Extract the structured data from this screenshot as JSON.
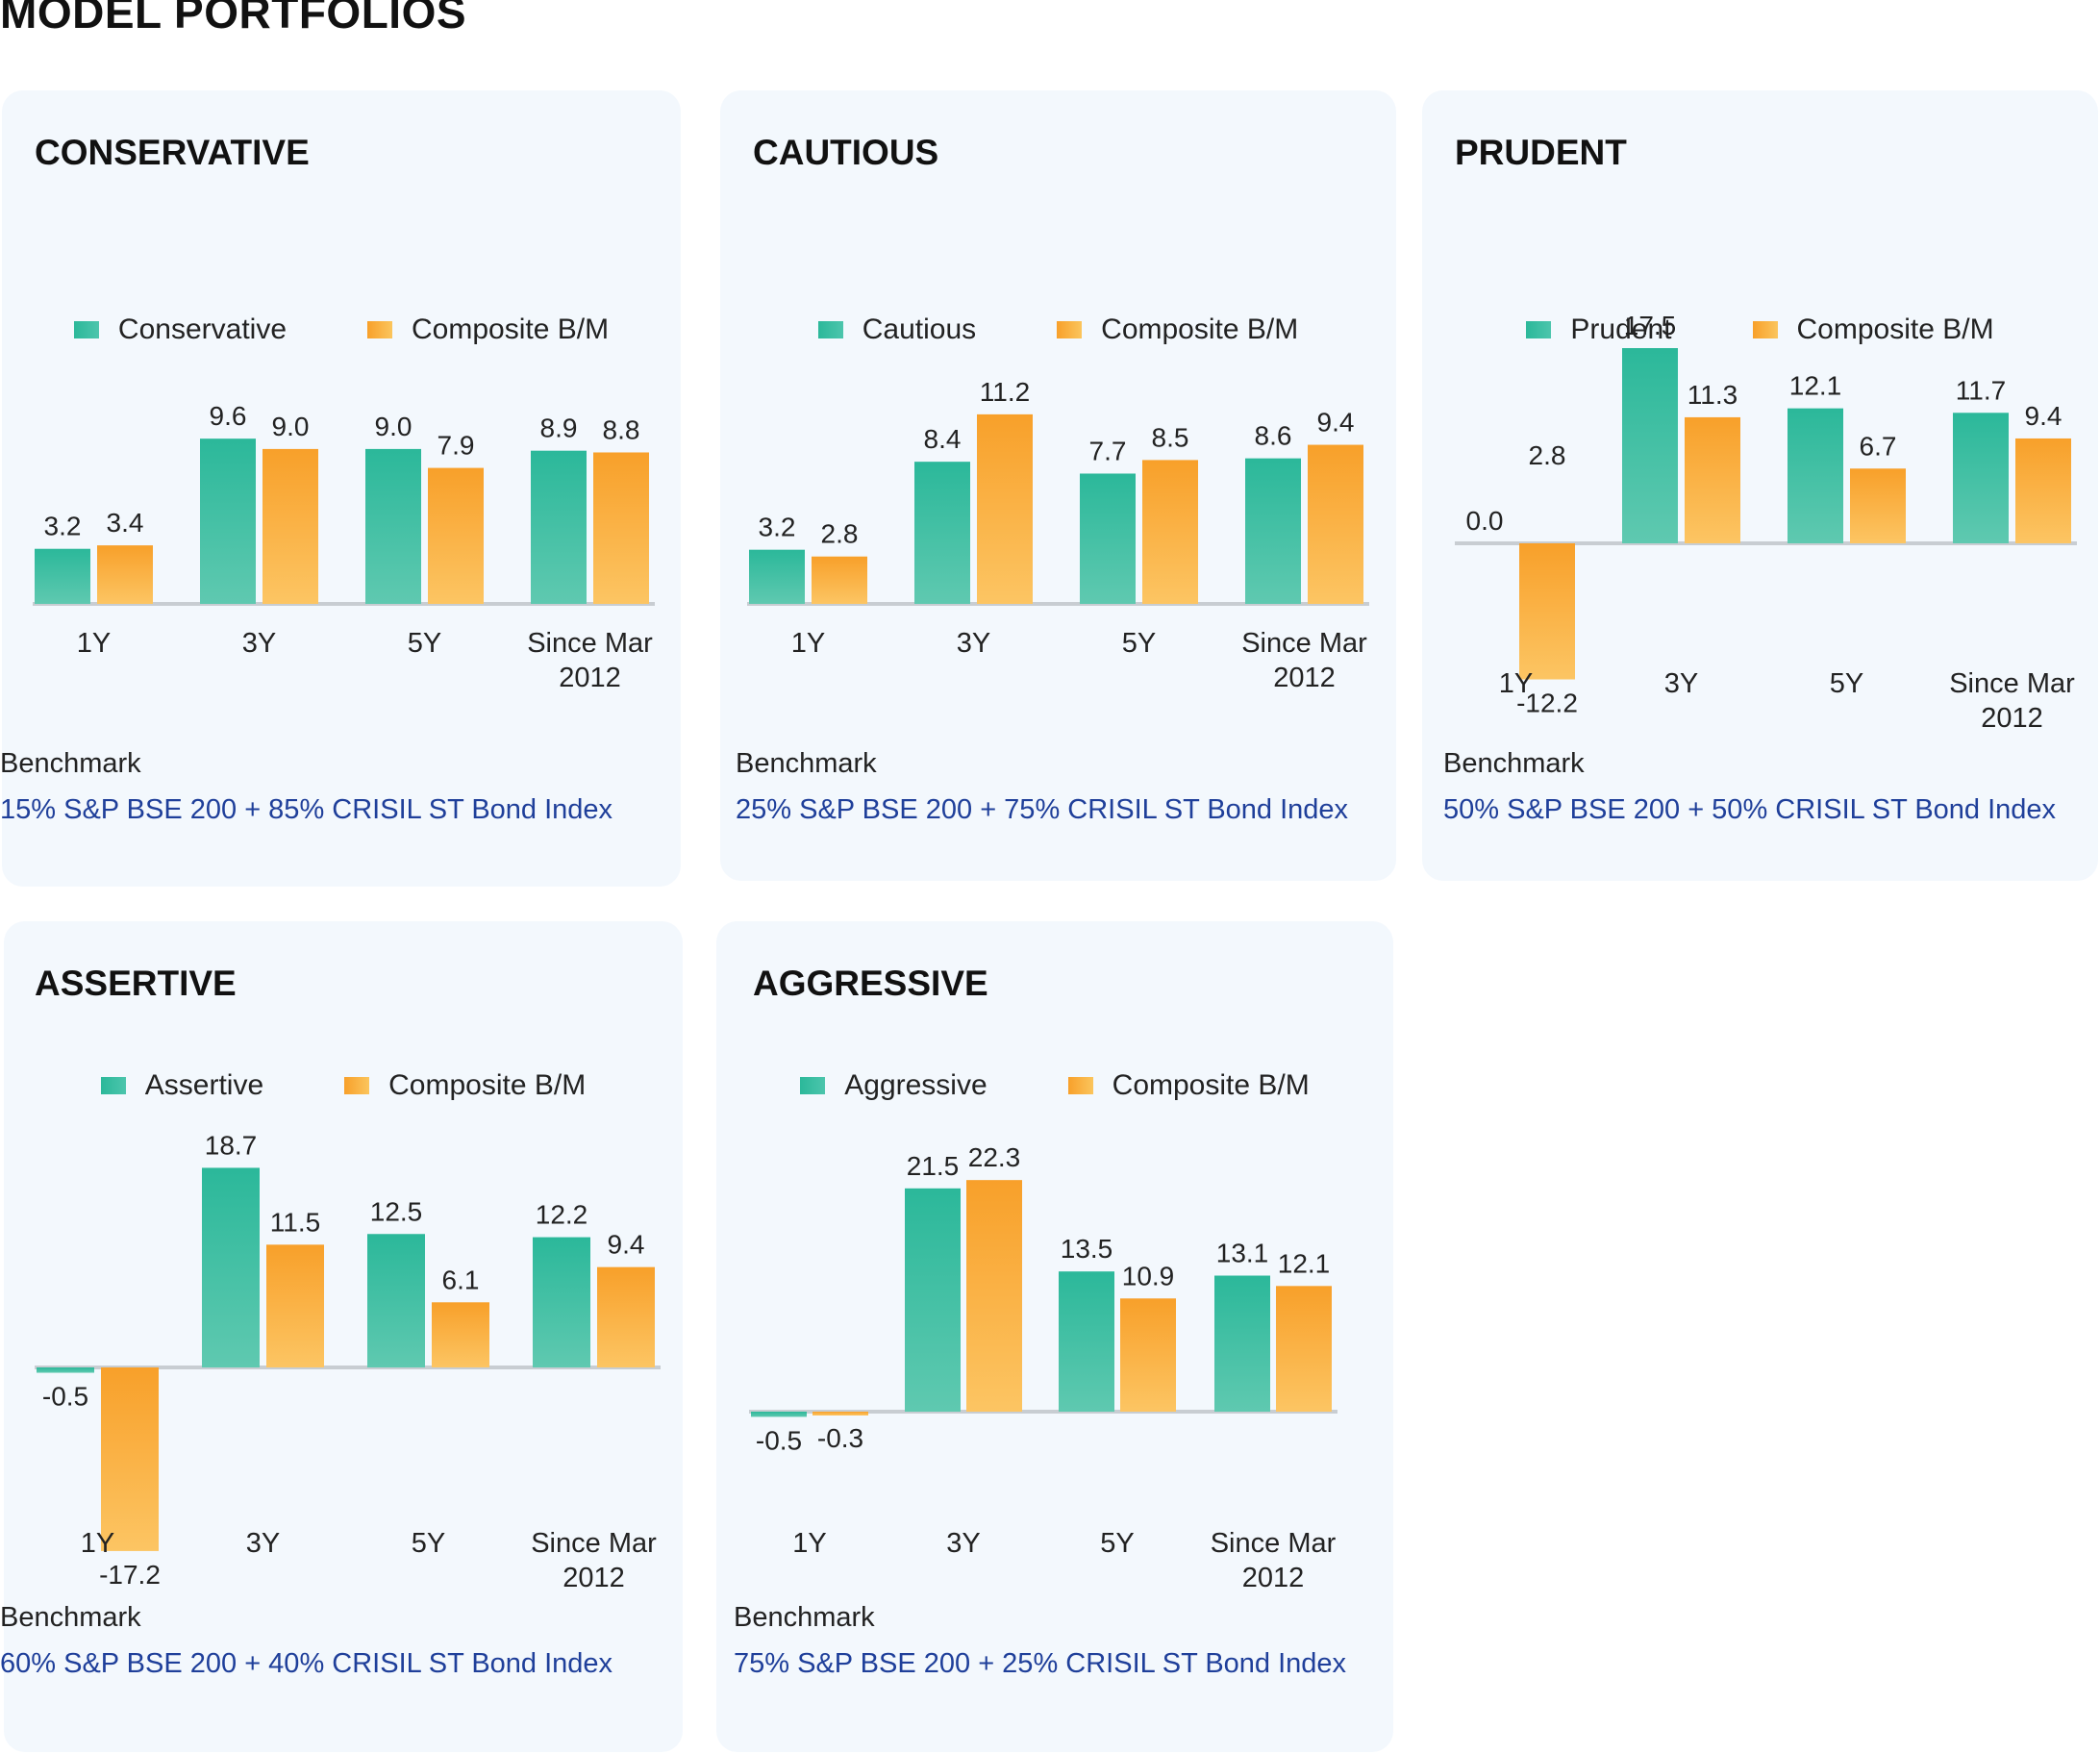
{
  "page_title": "MODEL PORTFOLIOS",
  "colors": {
    "portfolio": "#2bb89a",
    "benchmark": "#f8a02a",
    "benchmark_text": "#1f3f9a"
  },
  "benchmark_label": "Benchmark",
  "portfolios": [
    {
      "title": "CONSERVATIVE",
      "legend": [
        "Conservative",
        "Composite B/M"
      ],
      "benchmark_text": "15% S&P BSE 200 + 85% CRISIL ST Bond Index"
    },
    {
      "title": "CAUTIOUS",
      "legend": [
        "Cautious",
        "Composite B/M"
      ],
      "benchmark_text": "25% S&P BSE 200 + 75% CRISIL ST Bond Index"
    },
    {
      "title": "PRUDENT",
      "legend": [
        "Prudent",
        "Composite B/M"
      ],
      "benchmark_text": "50% S&P BSE 200 + 50% CRISIL ST Bond Index"
    },
    {
      "title": "ASSERTIVE",
      "legend": [
        "Assertive",
        "Composite B/M"
      ],
      "benchmark_text": "60% S&P BSE 200 + 40% CRISIL ST Bond Index"
    },
    {
      "title": "AGGRESSIVE",
      "legend": [
        "Aggressive",
        "Composite B/M"
      ],
      "benchmark_text": "75% S&P BSE 200 + 25% CRISIL ST Bond Index"
    }
  ],
  "chart_data": [
    {
      "type": "bar",
      "title": "CONSERVATIVE",
      "categories": [
        "1Y",
        "3Y",
        "5Y",
        "Since Mar 2012"
      ],
      "series": [
        {
          "name": "Conservative",
          "values": [
            3.2,
            9.6,
            9.0,
            8.9
          ]
        },
        {
          "name": "Composite B/M",
          "values": [
            3.4,
            9.0,
            7.9,
            8.8
          ]
        }
      ],
      "value_labels": [
        [
          "3.2",
          "9.6",
          "9.0",
          "8.9"
        ],
        [
          "3.4",
          "9.0",
          "7.9",
          "8.8"
        ]
      ],
      "legend_position": "top-center"
    },
    {
      "type": "bar",
      "title": "CAUTIOUS",
      "categories": [
        "1Y",
        "3Y",
        "5Y",
        "Since Mar 2012"
      ],
      "series": [
        {
          "name": "Cautious",
          "values": [
            3.2,
            8.4,
            7.7,
            8.6
          ]
        },
        {
          "name": "Composite B/M",
          "values": [
            2.8,
            11.2,
            8.5,
            9.4
          ]
        }
      ],
      "value_labels": [
        [
          "3.2",
          "8.4",
          "7.7",
          "8.6"
        ],
        [
          "2.8",
          "11.2",
          "8.5",
          "9.4"
        ]
      ],
      "legend_position": "top-center"
    },
    {
      "type": "bar",
      "title": "PRUDENT",
      "categories": [
        "1Y",
        "3Y",
        "5Y",
        "Since Mar 2012"
      ],
      "series": [
        {
          "name": "Prudent",
          "values": [
            0.0,
            17.5,
            12.1,
            11.7
          ]
        },
        {
          "name": "Composite B/M",
          "values": [
            -12.2,
            11.3,
            6.7,
            9.4
          ]
        }
      ],
      "value_labels": [
        [
          "0.0",
          "17.5",
          "12.1",
          "11.7"
        ],
        [
          "-12.2",
          "11.3",
          "6.7",
          "9.4"
        ]
      ],
      "extra_labels": [
        "2.8"
      ],
      "legend_position": "top-center"
    },
    {
      "type": "bar",
      "title": "ASSERTIVE",
      "categories": [
        "1Y",
        "3Y",
        "5Y",
        "Since Mar 2012"
      ],
      "series": [
        {
          "name": "Assertive",
          "values": [
            -0.5,
            18.7,
            12.5,
            12.2
          ]
        },
        {
          "name": "Composite B/M",
          "values": [
            -17.2,
            11.5,
            6.1,
            9.4
          ]
        }
      ],
      "value_labels": [
        [
          "-0.5",
          "18.7",
          "12.5",
          "12.2"
        ],
        [
          "-17.2",
          "11.5",
          "6.1",
          "9.4"
        ]
      ],
      "legend_position": "top-center"
    },
    {
      "type": "bar",
      "title": "AGGRESSIVE",
      "categories": [
        "1Y",
        "3Y",
        "5Y",
        "Since Mar 2012"
      ],
      "series": [
        {
          "name": "Aggressive",
          "values": [
            -0.5,
            21.5,
            13.5,
            13.1
          ]
        },
        {
          "name": "Composite B/M",
          "values": [
            -0.3,
            22.3,
            10.9,
            12.1
          ]
        }
      ],
      "value_labels": [
        [
          "-0.5",
          "21.5",
          "13.5",
          "13.1"
        ],
        [
          "-0.3",
          "22.3",
          "10.9",
          "12.1"
        ]
      ],
      "legend_position": "top-center"
    }
  ]
}
